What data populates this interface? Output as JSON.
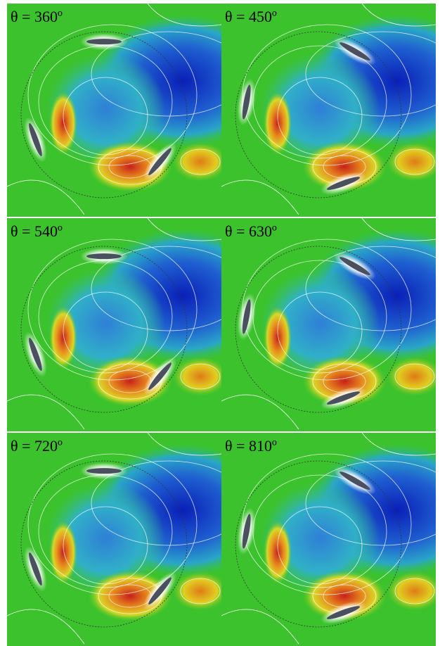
{
  "panels": [
    {
      "label": "θ = 360º"
    },
    {
      "label": "θ = 450º"
    },
    {
      "label": "θ = 540º"
    },
    {
      "label": "θ = 630º"
    },
    {
      "label": "θ = 720º"
    },
    {
      "label": "θ = 810º"
    }
  ]
}
